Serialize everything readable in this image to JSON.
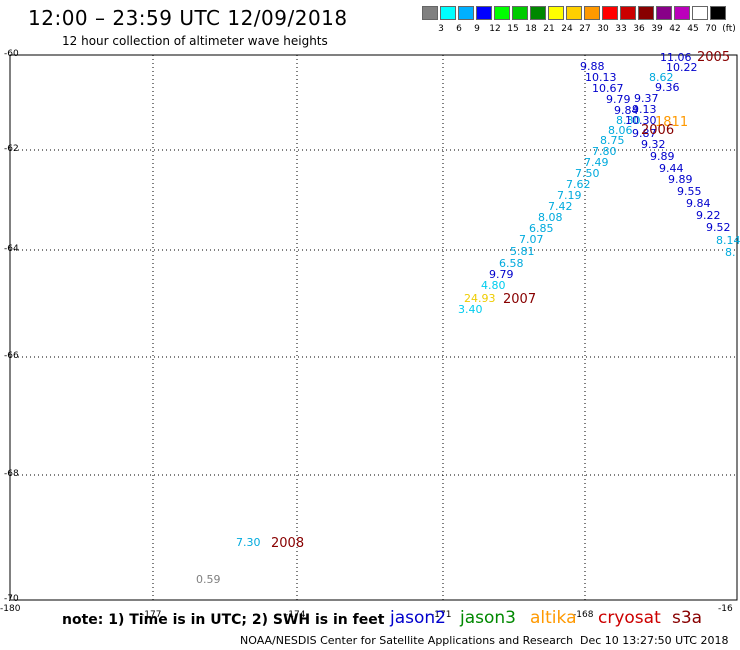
{
  "header": {
    "title": "12:00 – 23:59 UTC 12/09/2018",
    "subtitle": "12 hour collection of altimeter wave heights"
  },
  "legend": {
    "colors": [
      "#808080",
      "#00ffff",
      "#00b0ff",
      "#0000ff",
      "#00ff00",
      "#00cc00",
      "#008800",
      "#ffff00",
      "#ffd000",
      "#ff9900",
      "#ff0000",
      "#cc0000",
      "#880000",
      "#880088",
      "#bb00bb",
      "#ffffff",
      "#000000"
    ],
    "labels": [
      "3",
      "6",
      "9",
      "12",
      "15",
      "18",
      "21",
      "24",
      "27",
      "30",
      "33",
      "36",
      "39",
      "42",
      "45",
      "70",
      "(ft)"
    ]
  },
  "axes": {
    "y_labels": [
      "-60",
      "-62",
      "-64",
      "-66",
      "-68",
      "-70"
    ],
    "x_labels": [
      "-180",
      "-177",
      "-174",
      "-171",
      "-168",
      "-16"
    ]
  },
  "points": [
    {
      "text": "11.06",
      "c": "#0000cc"
    },
    {
      "text": "10.22",
      "c": "#0000cc"
    },
    {
      "text": "8.62",
      "c": "#00aadd"
    },
    {
      "text": "9.36",
      "c": "#0000cc"
    },
    {
      "text": "9.37",
      "c": "#0000cc"
    },
    {
      "text": "9.13",
      "c": "#0000cc"
    },
    {
      "text": "9.88",
      "c": "#0000cc"
    },
    {
      "text": "10.13",
      "c": "#0000cc"
    },
    {
      "text": "10.67",
      "c": "#0000cc"
    },
    {
      "text": "9.79",
      "c": "#0000cc"
    },
    {
      "text": "9.84",
      "c": "#0000cc"
    },
    {
      "text": "8.30",
      "c": "#00aadd"
    },
    {
      "text": "10.30",
      "c": "#0000cc"
    },
    {
      "text": "8.06",
      "c": "#00aadd"
    },
    {
      "text": "9.87",
      "c": "#0000cc"
    },
    {
      "text": "8.75",
      "c": "#00aadd"
    },
    {
      "text": "9.32",
      "c": "#0000cc"
    },
    {
      "text": "7.80",
      "c": "#00aadd"
    },
    {
      "text": "9.89",
      "c": "#0000cc"
    },
    {
      "text": "7.49",
      "c": "#00aadd"
    },
    {
      "text": "9.44",
      "c": "#0000cc"
    },
    {
      "text": "7.50",
      "c": "#00aadd"
    },
    {
      "text": "9.89",
      "c": "#0000cc"
    },
    {
      "text": "7.62",
      "c": "#00aadd"
    },
    {
      "text": "9.55",
      "c": "#0000cc"
    },
    {
      "text": "7.19",
      "c": "#00aadd"
    },
    {
      "text": "9.84",
      "c": "#0000cc"
    },
    {
      "text": "7.42",
      "c": "#00aadd"
    },
    {
      "text": "9.22",
      "c": "#0000cc"
    },
    {
      "text": "8.08",
      "c": "#00aadd"
    },
    {
      "text": "9.52",
      "c": "#0000cc"
    },
    {
      "text": "6.85",
      "c": "#00aadd"
    },
    {
      "text": "8.14",
      "c": "#00aadd"
    },
    {
      "text": "7.07",
      "c": "#00aadd"
    },
    {
      "text": "8.",
      "c": "#00aadd"
    },
    {
      "text": "5.81",
      "c": "#00aadd"
    },
    {
      "text": "6.58",
      "c": "#00aadd"
    },
    {
      "text": "9.79",
      "c": "#0000cc"
    },
    {
      "text": "4.80",
      "c": "#00ccee"
    },
    {
      "text": "24.93",
      "c": "#eecc00"
    },
    {
      "text": "3.40",
      "c": "#00ccee"
    },
    {
      "text": "7.30",
      "c": "#00aadd"
    },
    {
      "text": "0.59",
      "c": "#808080"
    }
  ],
  "year_labels": [
    {
      "text": "2005",
      "c": "#880000"
    },
    {
      "text": "1811",
      "c": "#ff9900"
    },
    {
      "text": "2006",
      "c": "#880000"
    },
    {
      "text": "2007",
      "c": "#880000"
    },
    {
      "text": "2008",
      "c": "#880000"
    }
  ],
  "footer": {
    "note": "note: 1) Time is in UTC; 2) SWH is in feet",
    "satellites": [
      {
        "name": "jason2",
        "c": "#0000cc"
      },
      {
        "name": "jason3",
        "c": "#008800"
      },
      {
        "name": "altika",
        "c": "#ff9900"
      },
      {
        "name": "cryosat",
        "c": "#cc0000"
      },
      {
        "name": "s3a",
        "c": "#880000"
      }
    ],
    "credit": "NOAA/NESDIS Center for Satellite Applications and Research",
    "timestamp": "Dec 10 13:27:50 UTC 2018"
  }
}
